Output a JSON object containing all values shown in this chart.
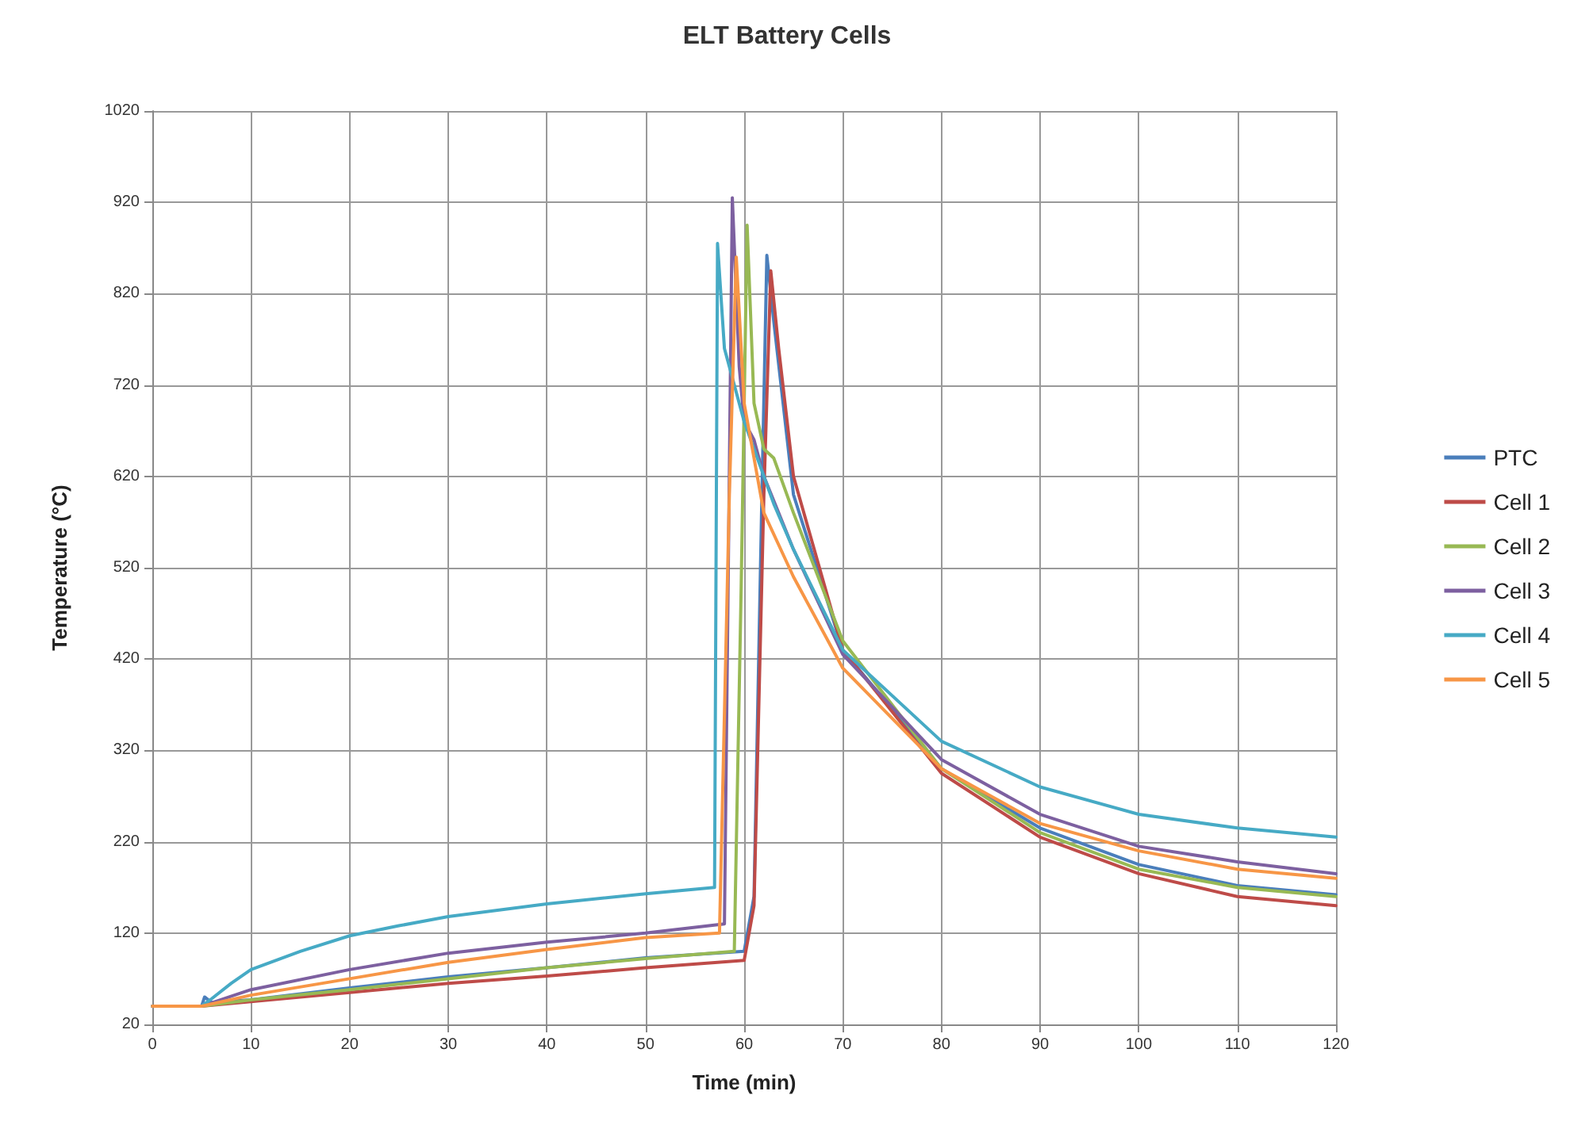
{
  "chart_data": {
    "type": "line",
    "title": "ELT Battery Cells",
    "xlabel": "Time (min)",
    "ylabel": "Temperature (°C)",
    "xlim": [
      0,
      120
    ],
    "xticks": [
      0,
      10,
      20,
      30,
      40,
      50,
      60,
      70,
      80,
      90,
      100,
      110,
      120
    ],
    "ylim": [
      20,
      1020
    ],
    "yticks": [
      20,
      120,
      220,
      320,
      420,
      520,
      620,
      720,
      820,
      920,
      1020
    ],
    "grid": true,
    "legend": "right",
    "marker": "none",
    "line_style": "solid",
    "series": [
      {
        "name": "PTC",
        "color": "#4a7ebb",
        "x": [
          0,
          5,
          5.3,
          6,
          10,
          20,
          30,
          40,
          50,
          60,
          61,
          61.8,
          62.3,
          63,
          65,
          70,
          80,
          90,
          100,
          110,
          120
        ],
        "values": [
          40,
          40,
          50,
          44,
          47,
          60,
          72,
          82,
          93,
          100,
          160,
          600,
          862,
          790,
          600,
          430,
          300,
          235,
          195,
          172,
          162
        ]
      },
      {
        "name": "Cell 1",
        "color": "#be4b48",
        "x": [
          0,
          5,
          10,
          20,
          30,
          40,
          50,
          60,
          61,
          62,
          62.7,
          63.5,
          65,
          70,
          80,
          90,
          100,
          110,
          120
        ],
        "values": [
          40,
          40,
          45,
          55,
          65,
          73,
          82,
          90,
          150,
          600,
          845,
          760,
          620,
          430,
          295,
          225,
          185,
          160,
          150
        ]
      },
      {
        "name": "Cell 2",
        "color": "#98b954",
        "x": [
          0,
          5,
          10,
          20,
          30,
          40,
          50,
          59,
          59.7,
          60.3,
          61,
          62,
          63,
          65,
          70,
          80,
          90,
          100,
          110,
          120
        ],
        "values": [
          40,
          40,
          47,
          58,
          70,
          82,
          92,
          100,
          500,
          895,
          700,
          650,
          640,
          580,
          440,
          300,
          230,
          190,
          170,
          160
        ]
      },
      {
        "name": "Cell 3",
        "color": "#7d60a0",
        "x": [
          0,
          5,
          10,
          20,
          30,
          40,
          50,
          58,
          58.8,
          59.5,
          60,
          61,
          62,
          65,
          70,
          80,
          90,
          100,
          110,
          120
        ],
        "values": [
          40,
          40,
          58,
          80,
          98,
          110,
          120,
          130,
          925,
          740,
          680,
          660,
          620,
          540,
          425,
          310,
          250,
          215,
          198,
          185
        ]
      },
      {
        "name": "Cell 4",
        "color": "#46aac5",
        "x": [
          0,
          5,
          6,
          8,
          10,
          15,
          20,
          25,
          30,
          40,
          50,
          57,
          57.3,
          58,
          59,
          60,
          63,
          65,
          70,
          80,
          90,
          100,
          110,
          120
        ],
        "values": [
          40,
          40,
          48,
          65,
          80,
          100,
          117,
          128,
          138,
          152,
          163,
          170,
          875,
          760,
          720,
          680,
          590,
          540,
          430,
          330,
          280,
          250,
          235,
          225
        ]
      },
      {
        "name": "Cell 5",
        "color": "#f79646",
        "x": [
          0,
          5,
          10,
          20,
          30,
          40,
          50,
          57.5,
          58.5,
          59.2,
          60,
          62,
          65,
          70,
          80,
          90,
          100,
          110,
          120
        ],
        "values": [
          40,
          40,
          52,
          70,
          88,
          102,
          115,
          120,
          600,
          860,
          700,
          580,
          510,
          410,
          300,
          240,
          210,
          190,
          180
        ]
      }
    ]
  }
}
